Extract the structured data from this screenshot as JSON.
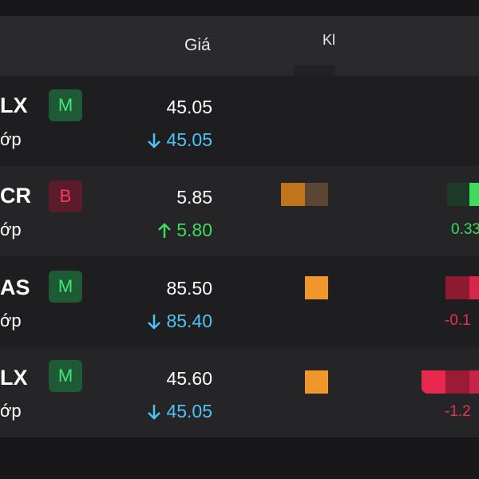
{
  "header": {
    "price": "Giá",
    "volume": "Kl"
  },
  "rows": [
    {
      "ticker": "LX",
      "sub": "ớp",
      "badge": "M",
      "price": "45.05",
      "ref": "45.05",
      "change": null
    },
    {
      "ticker": "CR",
      "sub": "ớp",
      "badge": "B",
      "price": "5.85",
      "ref": "5.80",
      "change": "0.33"
    },
    {
      "ticker": "AS",
      "sub": "ớp",
      "badge": "M",
      "price": "85.50",
      "ref": "85.40",
      "change": "-0.1"
    },
    {
      "ticker": "LX",
      "sub": "ớp",
      "badge": "M",
      "price": "45.60",
      "ref": "45.05",
      "change": "-1.2"
    }
  ]
}
